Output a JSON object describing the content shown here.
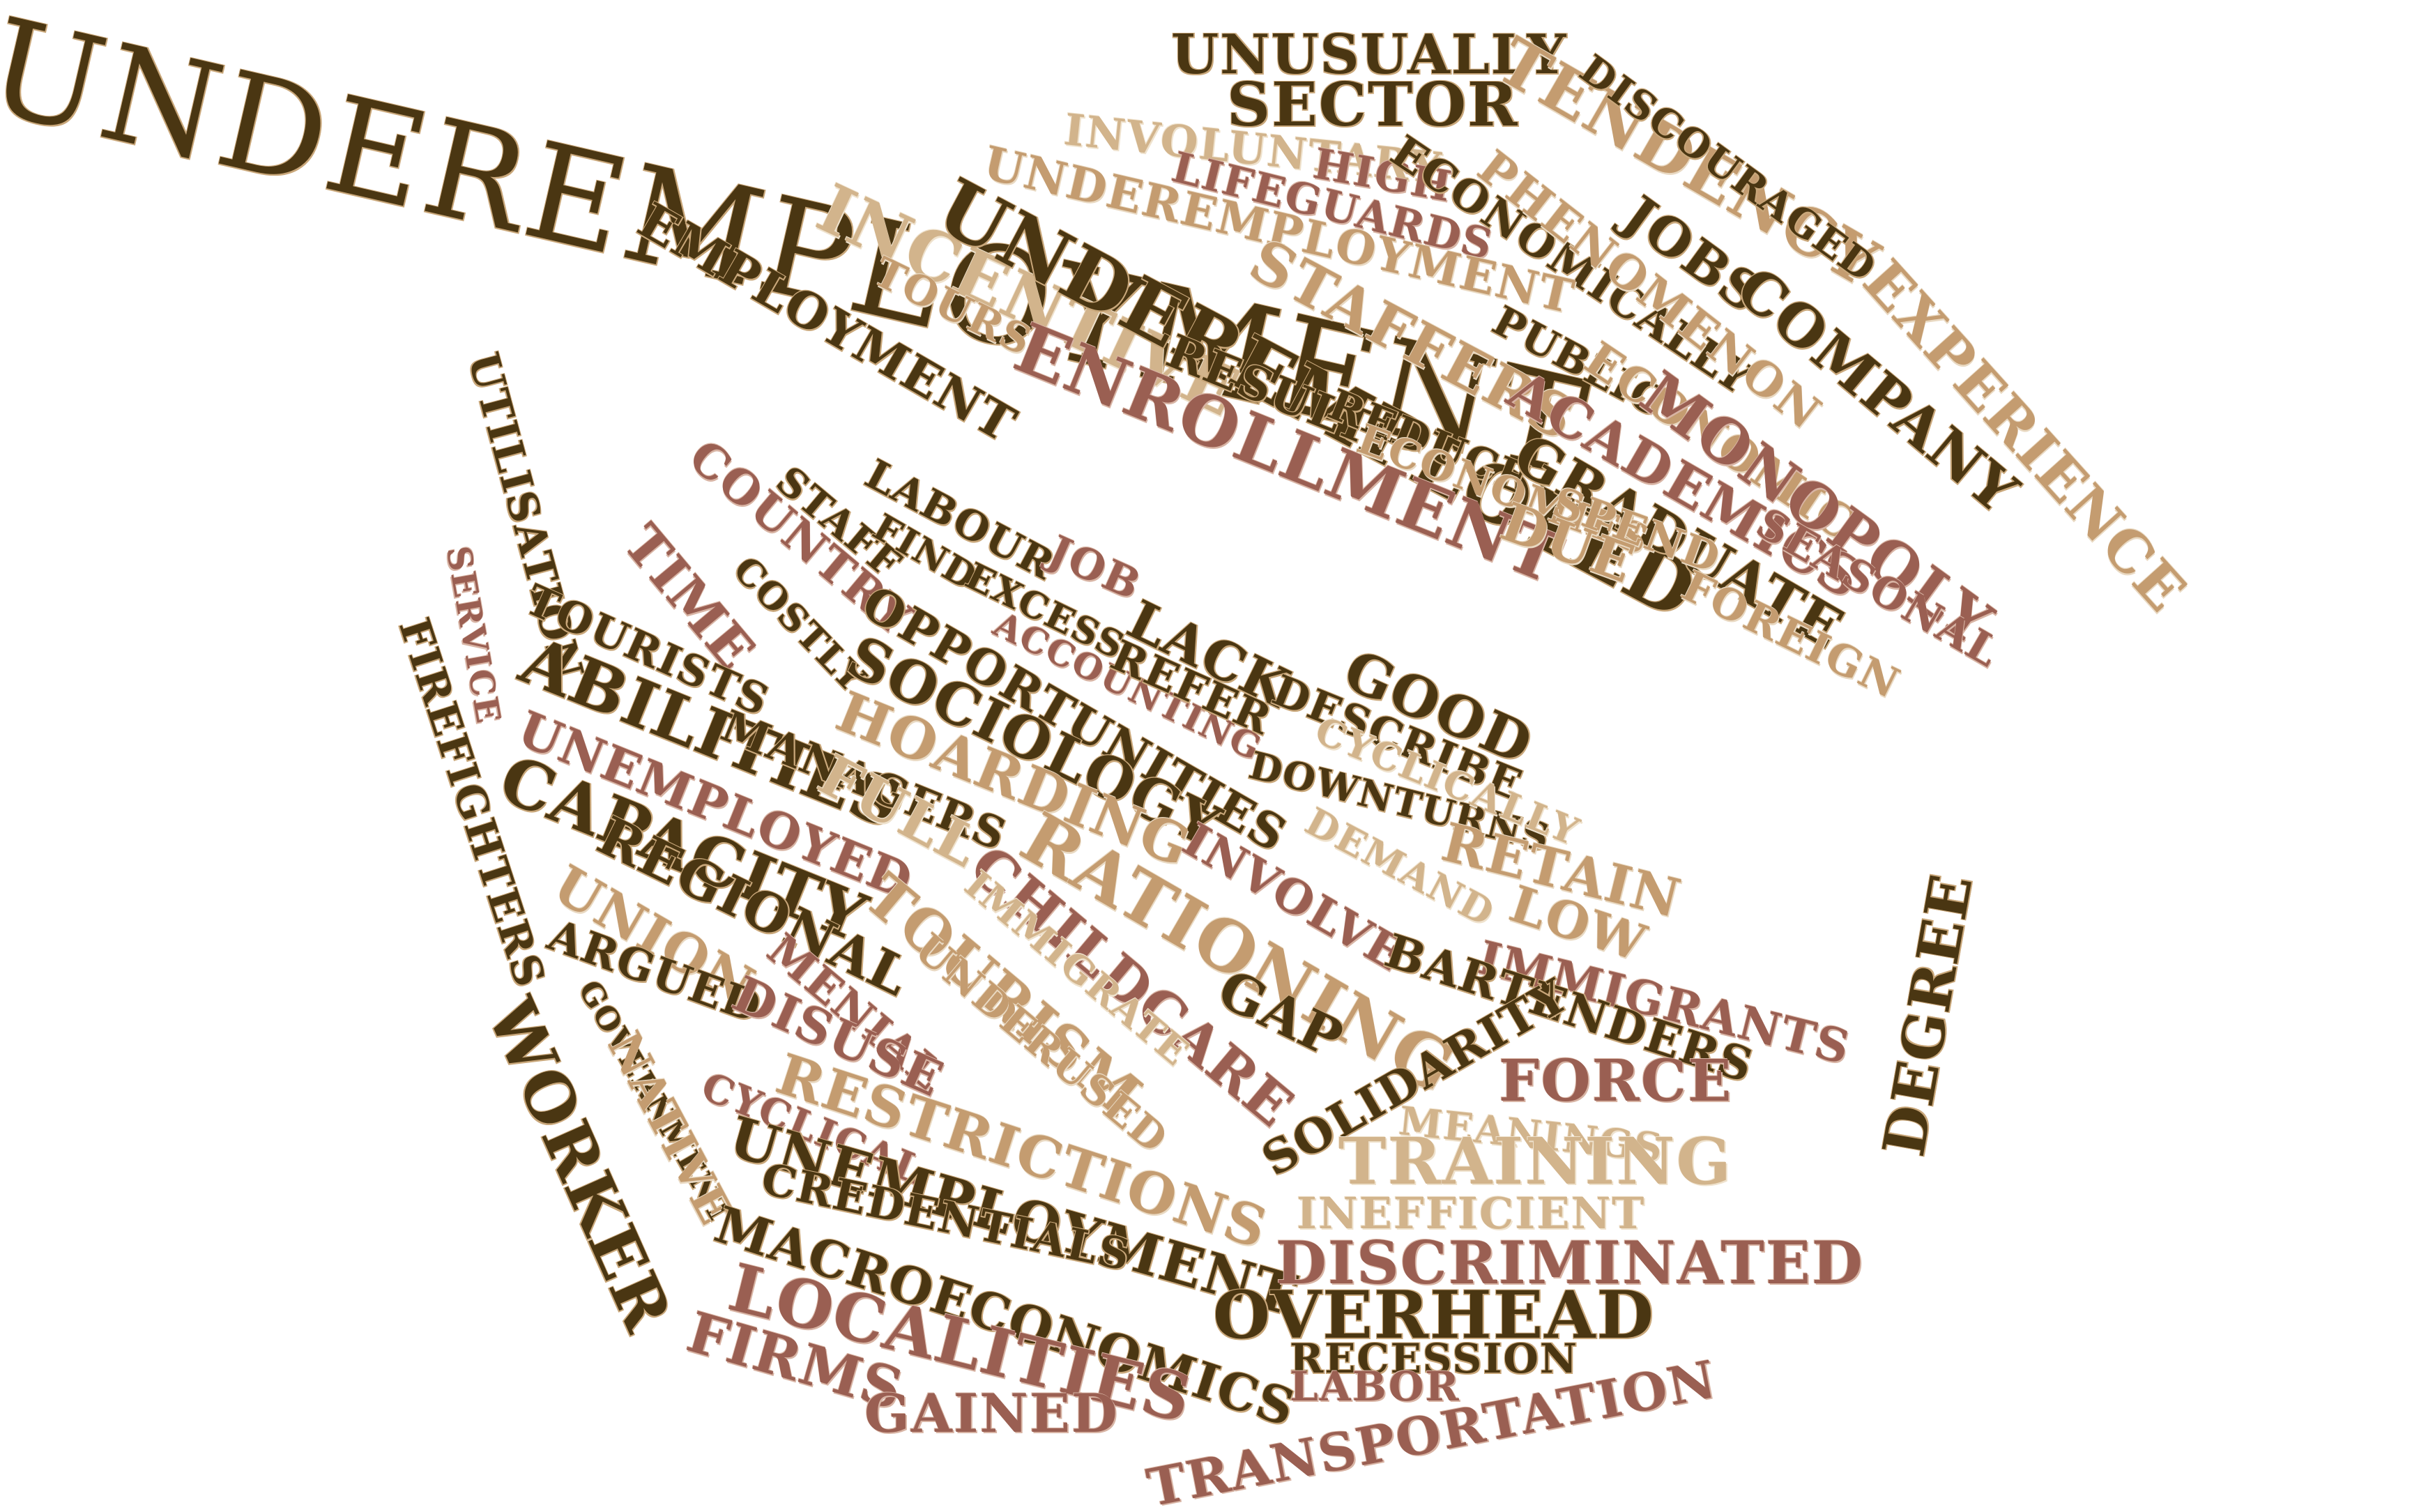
{
  "words": [
    {
      "text": "UNDEREMPLOYMENT",
      "tone": "dark"
    },
    {
      "text": "UNUSUALLY",
      "tone": "dark"
    },
    {
      "text": "SECTOR",
      "tone": "dark"
    },
    {
      "text": "TENDENCY",
      "tone": "tan"
    },
    {
      "text": "DISCOURAGED",
      "tone": "dark"
    },
    {
      "text": "INVOLUNTARY",
      "tone": "light"
    },
    {
      "text": "HIGH",
      "tone": "rose"
    },
    {
      "text": "LIFEGUARDS",
      "tone": "rose"
    },
    {
      "text": "ECONOMICALLY",
      "tone": "dark"
    },
    {
      "text": "PHENOMENON",
      "tone": "tan"
    },
    {
      "text": "JOBS",
      "tone": "dark"
    },
    {
      "text": "COMPANY",
      "tone": "dark"
    },
    {
      "text": "EXPERIENCE",
      "tone": "tan"
    },
    {
      "text": "INCENTIVE",
      "tone": "light"
    },
    {
      "text": "UNDEREMPLOYMENT",
      "tone": "tan"
    },
    {
      "text": "UNDEREMPLOYED",
      "tone": "dark"
    },
    {
      "text": "STAFFERS",
      "tone": "tan"
    },
    {
      "text": "PUBLIC",
      "tone": "dark"
    },
    {
      "text": "ECONOMIC",
      "tone": "tan"
    },
    {
      "text": "MONOPOLY",
      "tone": "rose"
    },
    {
      "text": "EMPLOYMENT",
      "tone": "dark"
    },
    {
      "text": "TOURS",
      "tone": "tan"
    },
    {
      "text": "ENROLLMENT",
      "tone": "rose"
    },
    {
      "text": "RESULT",
      "tone": "dark"
    },
    {
      "text": "REDUCE",
      "tone": "dark"
    },
    {
      "text": "ACADEMICS",
      "tone": "rose"
    },
    {
      "text": "GRADUATE",
      "tone": "dark"
    },
    {
      "text": "SEASONAL",
      "tone": "rose"
    },
    {
      "text": "ECONOMIES",
      "tone": "tan"
    },
    {
      "text": "SPEND",
      "tone": "tan"
    },
    {
      "text": "FOREIGN",
      "tone": "tan"
    },
    {
      "text": "DUE",
      "tone": "tan"
    },
    {
      "text": "UTILISATION",
      "tone": "dark"
    },
    {
      "text": "COUNTRY",
      "tone": "rose"
    },
    {
      "text": "STAFF",
      "tone": "dark"
    },
    {
      "text": "LABOUR",
      "tone": "dark"
    },
    {
      "text": "FIND",
      "tone": "dark"
    },
    {
      "text": "JOB",
      "tone": "rose"
    },
    {
      "text": "EXCESS",
      "tone": "dark"
    },
    {
      "text": "LACK",
      "tone": "dark"
    },
    {
      "text": "GOOD",
      "tone": "dark"
    },
    {
      "text": "TIME",
      "tone": "rose"
    },
    {
      "text": "COSTLY",
      "tone": "dark"
    },
    {
      "text": "OPPORTUNITIES",
      "tone": "dark"
    },
    {
      "text": "ACCOUNTING",
      "tone": "rose"
    },
    {
      "text": "REFER",
      "tone": "dark"
    },
    {
      "text": "DESCRIBE",
      "tone": "dark"
    },
    {
      "text": "SERVICE",
      "tone": "rose"
    },
    {
      "text": "TOURISTS",
      "tone": "dark"
    },
    {
      "text": "SOCIOLOGY",
      "tone": "dark"
    },
    {
      "text": "DOWNTURNS",
      "tone": "dark"
    },
    {
      "text": "CYCLICALLY",
      "tone": "light"
    },
    {
      "text": "ABILITIES",
      "tone": "dark"
    },
    {
      "text": "HOARDING",
      "tone": "tan"
    },
    {
      "text": "FIREFIGHTERS",
      "tone": "dark"
    },
    {
      "text": "MANAGERS",
      "tone": "dark"
    },
    {
      "text": "DEMAND",
      "tone": "light"
    },
    {
      "text": "RETAIN",
      "tone": "tan"
    },
    {
      "text": "UNEMPLOYED",
      "tone": "rose"
    },
    {
      "text": "FULL",
      "tone": "light"
    },
    {
      "text": "INVOLVE",
      "tone": "rose"
    },
    {
      "text": "LOW",
      "tone": "tan"
    },
    {
      "text": "CAPACITY",
      "tone": "dark"
    },
    {
      "text": "RATIONING",
      "tone": "tan"
    },
    {
      "text": "IMMIGRANTS",
      "tone": "rose"
    },
    {
      "text": "DEGREE",
      "tone": "dark"
    },
    {
      "text": "REGIONAL",
      "tone": "dark"
    },
    {
      "text": "CHILDCARE",
      "tone": "rose"
    },
    {
      "text": "BARTENDERS",
      "tone": "dark"
    },
    {
      "text": "UNION",
      "tone": "tan"
    },
    {
      "text": "TOURISM",
      "tone": "tan"
    },
    {
      "text": "IMMIGRATE",
      "tone": "light"
    },
    {
      "text": "GAP",
      "tone": "dark"
    },
    {
      "text": "ARGUED",
      "tone": "dark"
    },
    {
      "text": "MENIAL",
      "tone": "rose"
    },
    {
      "text": "UNDERUSED",
      "tone": "tan"
    },
    {
      "text": "DISUSE",
      "tone": "rose"
    },
    {
      "text": "SOLIDARITY",
      "tone": "dark"
    },
    {
      "text": "FORCE",
      "tone": "rose"
    },
    {
      "text": "GOVERNMENT",
      "tone": "dark"
    },
    {
      "text": "NATIVE",
      "tone": "tan"
    },
    {
      "text": "RESTRICTIONS",
      "tone": "tan"
    },
    {
      "text": "MEANINGS",
      "tone": "light"
    },
    {
      "text": "WORKER",
      "tone": "dark"
    },
    {
      "text": "CYCLICAL",
      "tone": "rose"
    },
    {
      "text": "TRAINING",
      "tone": "light"
    },
    {
      "text": "UNEMPLOYMENT",
      "tone": "dark"
    },
    {
      "text": "INEFFICIENT",
      "tone": "light"
    },
    {
      "text": "CREDENTIALS",
      "tone": "dark"
    },
    {
      "text": "DISCRIMINATED",
      "tone": "rose"
    },
    {
      "text": "MACROECONOMICS",
      "tone": "dark"
    },
    {
      "text": "OVERHEAD",
      "tone": "dark"
    },
    {
      "text": "LOCALITIES",
      "tone": "rose"
    },
    {
      "text": "RECESSION",
      "tone": "dark"
    },
    {
      "text": "FIRMS",
      "tone": "rose"
    },
    {
      "text": "LABOR",
      "tone": "rose"
    },
    {
      "text": "GAINED",
      "tone": "rose"
    },
    {
      "text": "TRANSPORTATION",
      "tone": "rose"
    }
  ]
}
